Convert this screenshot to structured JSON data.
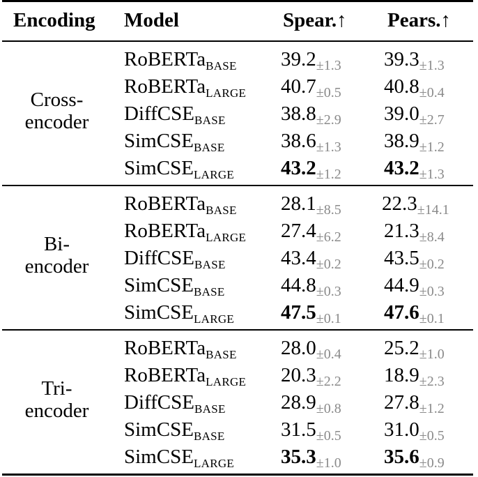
{
  "header": {
    "encoding": "Encoding",
    "model": "Model",
    "spear": "Spear.↑",
    "pears": "Pears.↑"
  },
  "groups": [
    {
      "label_line1": "Cross-",
      "label_line2": "encoder",
      "rows": [
        {
          "model": "RoBERTa",
          "variant": "BASE",
          "spear": "39.2",
          "spear_std": "±1.3",
          "pears": "39.3",
          "pears_std": "±1.3"
        },
        {
          "model": "RoBERTa",
          "variant": "LARGE",
          "spear": "40.7",
          "spear_std": "±0.5",
          "pears": "40.8",
          "pears_std": "±0.4"
        },
        {
          "model": "DiffCSE",
          "variant": "BASE",
          "spear": "38.8",
          "spear_std": "±2.9",
          "pears": "39.0",
          "pears_std": "±2.7"
        },
        {
          "model": "SimCSE",
          "variant": "BASE",
          "spear": "38.6",
          "spear_std": "±1.3",
          "pears": "38.9",
          "pears_std": "±1.2"
        },
        {
          "model": "SimCSE",
          "variant": "LARGE",
          "spear": "43.2",
          "spear_std": "±1.2",
          "pears": "43.2",
          "pears_std": "±1.3"
        }
      ]
    },
    {
      "label_line1": "Bi-",
      "label_line2": "encoder",
      "rows": [
        {
          "model": "RoBERTa",
          "variant": "BASE",
          "spear": "28.1",
          "spear_std": "±8.5",
          "pears": "22.3",
          "pears_std": "±14.1"
        },
        {
          "model": "RoBERTa",
          "variant": "LARGE",
          "spear": "27.4",
          "spear_std": "±6.2",
          "pears": "21.3",
          "pears_std": "±8.4"
        },
        {
          "model": "DiffCSE",
          "variant": "BASE",
          "spear": "43.4",
          "spear_std": "±0.2",
          "pears": "43.5",
          "pears_std": "±0.2"
        },
        {
          "model": "SimCSE",
          "variant": "BASE",
          "spear": "44.8",
          "spear_std": "±0.3",
          "pears": "44.9",
          "pears_std": "±0.3"
        },
        {
          "model": "SimCSE",
          "variant": "LARGE",
          "spear": "47.5",
          "spear_std": "±0.1",
          "pears": "47.6",
          "pears_std": "±0.1"
        }
      ]
    },
    {
      "label_line1": "Tri-",
      "label_line2": "encoder",
      "rows": [
        {
          "model": "RoBERTa",
          "variant": "BASE",
          "spear": "28.0",
          "spear_std": "±0.4",
          "pears": "25.2",
          "pears_std": "±1.0"
        },
        {
          "model": "RoBERTa",
          "variant": "LARGE",
          "spear": "20.3",
          "spear_std": "±2.2",
          "pears": "18.9",
          "pears_std": "±2.3"
        },
        {
          "model": "DiffCSE",
          "variant": "BASE",
          "spear": "28.9",
          "spear_std": "±0.8",
          "pears": "27.8",
          "pears_std": "±1.2"
        },
        {
          "model": "SimCSE",
          "variant": "BASE",
          "spear": "31.5",
          "spear_std": "±0.5",
          "pears": "31.0",
          "pears_std": "±0.5"
        },
        {
          "model": "SimCSE",
          "variant": "LARGE",
          "spear": "35.3",
          "spear_std": "±1.0",
          "pears": "35.6",
          "pears_std": "±0.9"
        }
      ]
    }
  ]
}
